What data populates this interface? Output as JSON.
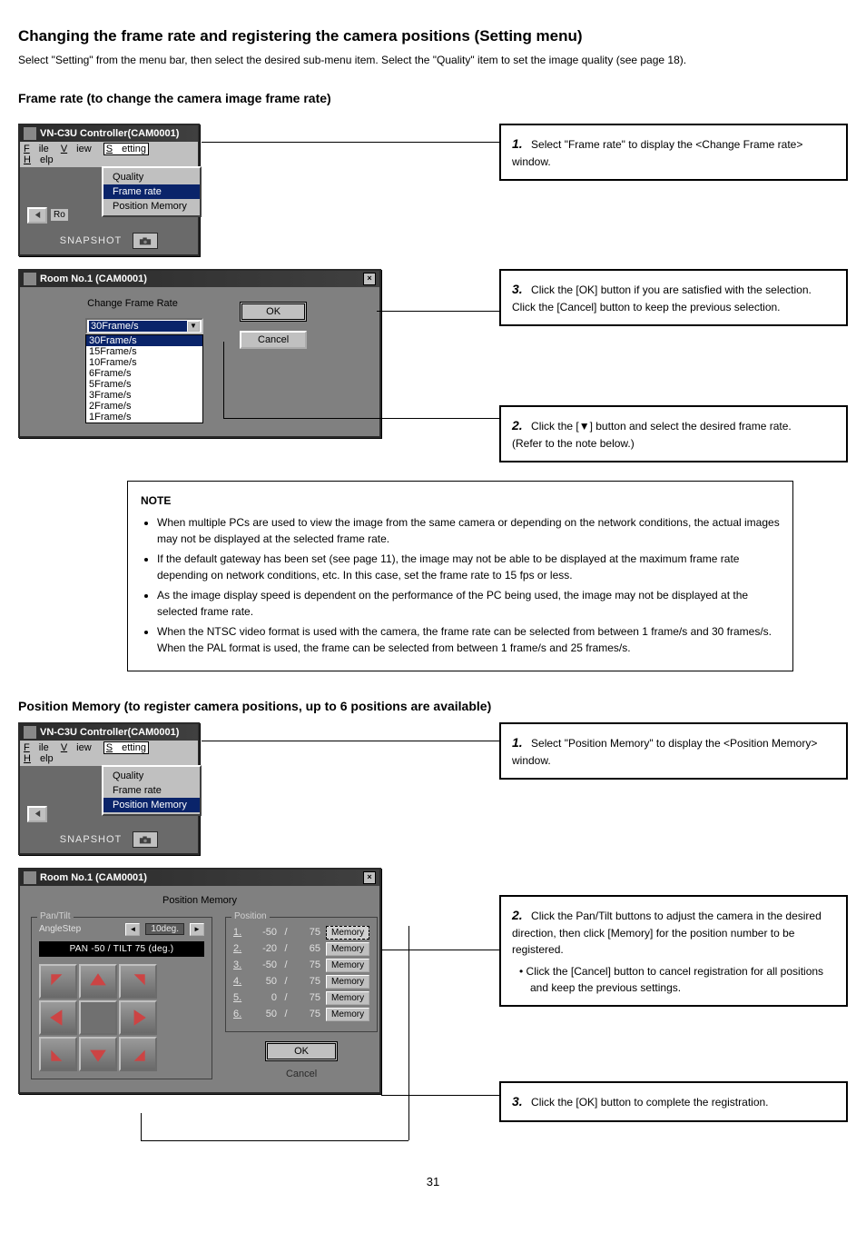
{
  "page": {
    "header_title": "Changing the frame rate and registering the camera positions (Setting menu)",
    "header_intro": "Select \"Setting\" from the menu bar, then select the desired sub-menu item. Select the \"Quality\" item to set the image quality (see page 18).",
    "section1_title": "Frame rate (to change the camera image frame rate)",
    "section2_title": "Position Memory (to register camera positions, up to 6 positions are available)",
    "footer_page": "31"
  },
  "menu_texts": {
    "file": "File",
    "view": "View",
    "setting": "Setting",
    "help": "Help",
    "quality": "Quality",
    "framerate": "Frame rate",
    "posmem": "Position Memory"
  },
  "win1": {
    "title": "VN-C3U Controller(CAM0001)",
    "snapshot": "SNAPSHOT",
    "room_partial": "Ro"
  },
  "step1": {
    "text": "Select \"Frame rate\" to display the <Change Frame rate> window."
  },
  "win2": {
    "title": "Room No.1  (CAM0001)",
    "heading": "Change Frame Rate",
    "ok": "OK",
    "cancel": "Cancel",
    "combo_value": "30Frame/s",
    "options": [
      "30Frame/s",
      "15Frame/s",
      "10Frame/s",
      "6Frame/s",
      "5Frame/s",
      "3Frame/s",
      "2Frame/s",
      "1Frame/s"
    ]
  },
  "step2": {
    "text": "Click the [OK] button if you are satisfied with the selection. Click the [Cancel] button to keep the previous selection."
  },
  "step3": {
    "text": "Click the [▼] button and select the desired frame rate.",
    "note_line": "(Refer to the note below.)"
  },
  "note": {
    "title": "NOTE",
    "items": [
      "When multiple PCs are used to view the image from the same camera or depending on the network conditions, the actual images may not be displayed at the selected frame rate.",
      "If the default gateway has been set (see page 11), the image may not be able to be displayed at the maximum frame rate depending on network conditions, etc. In this case, set the frame rate to 15 fps or less.",
      "As the image display speed is dependent on the performance of the PC being used, the image may not be displayed at the selected frame rate.",
      "When the NTSC video format is used with the camera, the frame rate can be selected from between 1 frame/s and 30 frames/s. When the PAL format is used, the frame can be selected from between 1 frame/s and 25 frames/s."
    ]
  },
  "win3": {
    "title": "VN-C3U Controller(CAM0001)",
    "snapshot": "SNAPSHOT"
  },
  "step_pm1": {
    "text": "Select \"Position Memory\" to display the <Position Memory> window."
  },
  "win4": {
    "title": "Room No.1  (CAM0001)",
    "heading": "Position Memory",
    "pantilt_label": "Pan/Tilt",
    "anglestep_label": "AngleStep",
    "anglestep_value": "10deg.",
    "display_text": "PAN -50 / TILT 75 (deg.)",
    "position_label": "Position",
    "positions": [
      {
        "n": "1.",
        "pan": "-50",
        "tilt": "75",
        "hl": true
      },
      {
        "n": "2.",
        "pan": "-20",
        "tilt": "65",
        "hl": false
      },
      {
        "n": "3.",
        "pan": "-50",
        "tilt": "75",
        "hl": false
      },
      {
        "n": "4.",
        "pan": "50",
        "tilt": "75",
        "hl": false
      },
      {
        "n": "5.",
        "pan": "0",
        "tilt": "75",
        "hl": false
      },
      {
        "n": "6.",
        "pan": "50",
        "tilt": "75",
        "hl": false
      }
    ],
    "memory_label": "Memory",
    "ok": "OK",
    "cancel": "Cancel"
  },
  "step_pm2": {
    "text": "Click the Pan/Tilt buttons to adjust the camera in the desired direction, then click [Memory] for the position number to be registered.",
    "note": "Click the [Cancel] button to cancel registration for all positions and keep the previous settings."
  },
  "step_pm3": {
    "text": "Click the [OK] button to complete the registration."
  },
  "colors": {
    "window_bg": "#6a6a6a",
    "titlebar_start": "#2a2a2a",
    "titlebar_end": "#404040",
    "button_bg": "#c0c0c0",
    "highlight_bg": "#0a246a",
    "border": "#000000"
  }
}
